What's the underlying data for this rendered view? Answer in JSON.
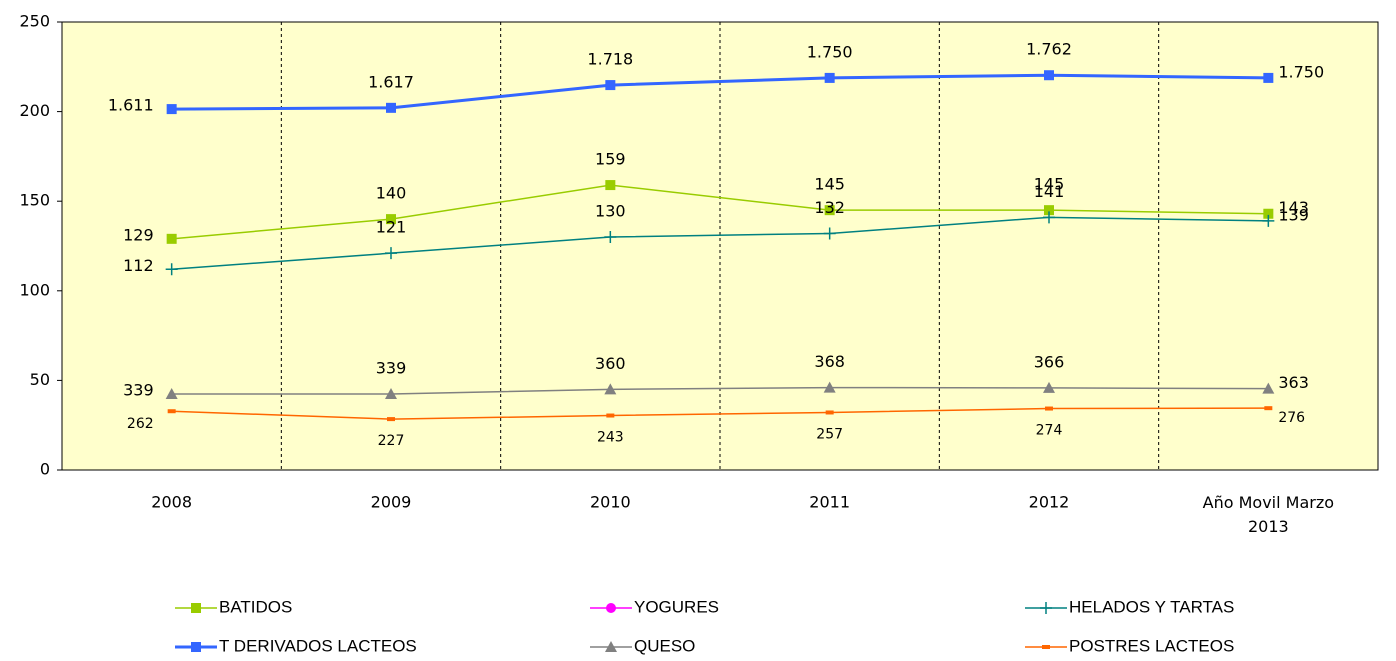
{
  "chart_data": {
    "type": "line",
    "categories": [
      "2008",
      "2009",
      "2010",
      "2011",
      "2012",
      "Año Movil Marzo 2013"
    ],
    "ylim": [
      0,
      250
    ],
    "yticks": [
      0,
      50,
      100,
      150,
      200,
      250
    ],
    "series": [
      {
        "name": "BATIDOS",
        "color": "#99cc00",
        "marker": "square",
        "values": [
          129,
          140,
          159,
          145,
          145,
          143
        ]
      },
      {
        "name": "YOGURES",
        "color": "#ff00ff",
        "marker": "circle",
        "values": [
          null,
          null,
          null,
          null,
          null,
          null
        ]
      },
      {
        "name": "HELADOS Y TARTAS",
        "color": "#008080",
        "marker": "plus",
        "values": [
          112,
          121,
          130,
          132,
          141,
          139
        ]
      },
      {
        "name": "T DERIVADOS LACTEOS",
        "color": "#3366ff",
        "marker": "square",
        "width": 3,
        "values": [
          201.4,
          202.1,
          214.8,
          218.8,
          220.3,
          218.8
        ],
        "point_labels": [
          "1.611",
          "1.617",
          "1.718",
          "1.750",
          "1.762",
          "1.750"
        ]
      },
      {
        "name": "QUESO",
        "color": "#808080",
        "marker": "triangle",
        "values": [
          42.4,
          42.4,
          45,
          46,
          45.8,
          45.4
        ],
        "point_labels": [
          "339",
          "339",
          "360",
          "368",
          "366",
          "363"
        ]
      },
      {
        "name": "POSTRES LACTEOS",
        "color": "#ff6600",
        "marker": "dash",
        "values": [
          32.8,
          28.4,
          30.4,
          32.1,
          34.3,
          34.5
        ],
        "point_labels": [
          "262",
          "227",
          "243",
          "257",
          "274",
          "276"
        ]
      }
    ]
  }
}
